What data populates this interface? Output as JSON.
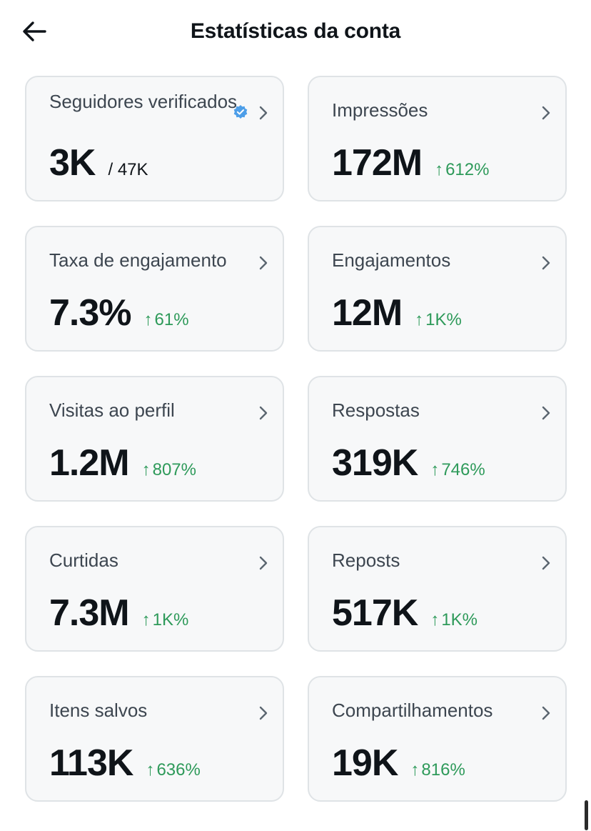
{
  "header": {
    "title": "Estatísticas da conta",
    "back_icon": "arrow-left-icon"
  },
  "colors": {
    "positive": "#2e9a5a",
    "verified": "#4d9ee8",
    "card_bg": "#f7f8f9",
    "card_border": "#dfe3e6"
  },
  "stats": [
    {
      "label": "Seguidores verificados",
      "value": "3K",
      "sub": "/ 47K",
      "verified": true
    },
    {
      "label": "Impressões",
      "value": "172M",
      "change": "612%"
    },
    {
      "label": "Taxa de engajamento",
      "value": "7.3%",
      "change": "61%"
    },
    {
      "label": "Engajamentos",
      "value": "12M",
      "change": "1K%"
    },
    {
      "label": "Visitas ao perfil",
      "value": "1.2M",
      "change": "807%"
    },
    {
      "label": "Respostas",
      "value": "319K",
      "change": "746%"
    },
    {
      "label": "Curtidas",
      "value": "7.3M",
      "change": "1K%"
    },
    {
      "label": "Reposts",
      "value": "517K",
      "change": "1K%"
    },
    {
      "label": "Itens salvos",
      "value": "113K",
      "change": "636%"
    },
    {
      "label": "Compartilhamentos",
      "value": "19K",
      "change": "816%"
    }
  ]
}
